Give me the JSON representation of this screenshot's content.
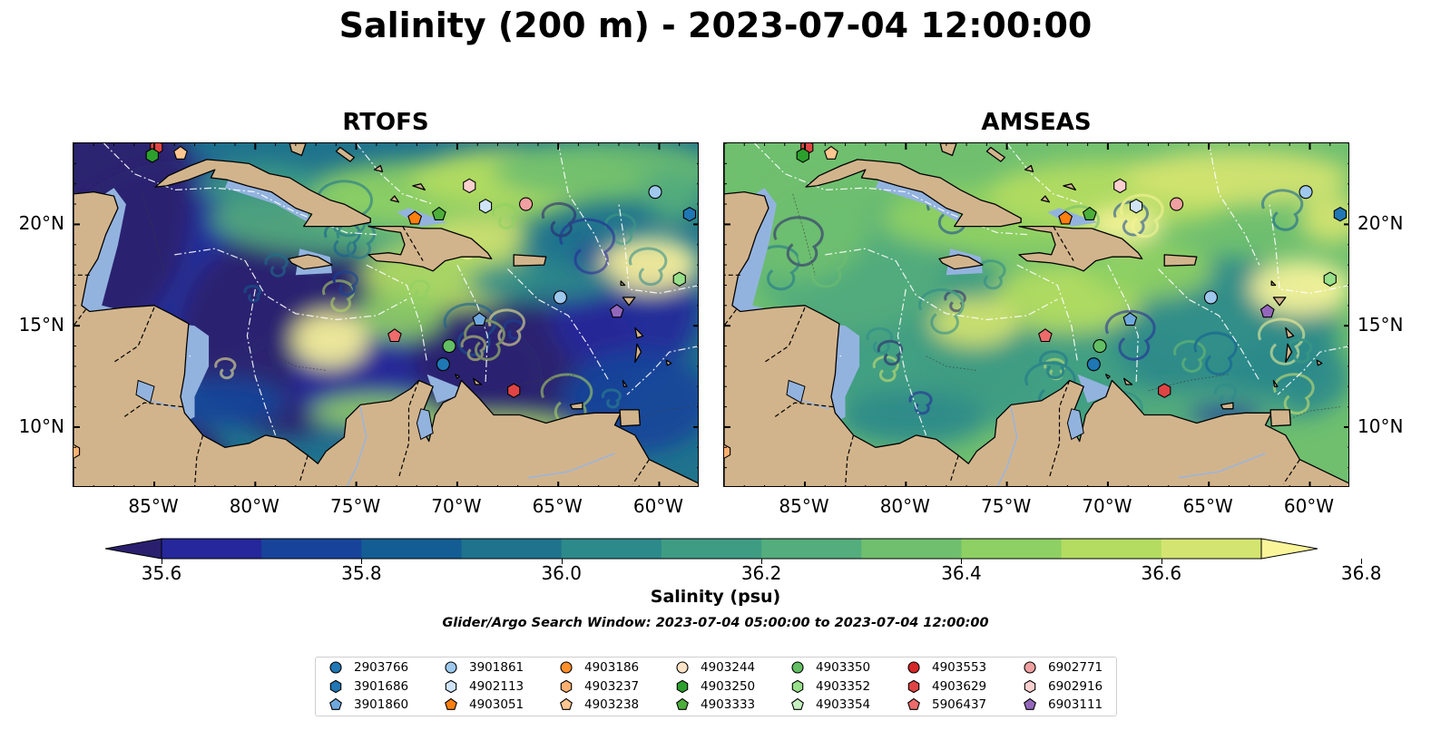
{
  "title": "Salinity (200 m) - 2023-07-04 12:00:00",
  "panels": [
    {
      "title": "RTOFS",
      "scheme": "rtofs"
    },
    {
      "title": "AMSEAS",
      "scheme": "amseas"
    }
  ],
  "map_extent": {
    "lon_min": -89,
    "lon_max": -58,
    "lat_min": 7,
    "lat_max": 24
  },
  "axes": {
    "lon_ticks": [
      "85°W",
      "80°W",
      "75°W",
      "70°W",
      "65°W",
      "60°W"
    ],
    "lat_ticks": [
      "20°N",
      "15°N",
      "10°N"
    ]
  },
  "colorbar": {
    "label": "Salinity (psu)",
    "min": 35.6,
    "max": 36.9,
    "step": 0.1,
    "tick_labels": [
      "35.6",
      "35.8",
      "36.0",
      "36.2",
      "36.4",
      "36.6",
      "36.8"
    ],
    "colors": [
      "#2a1f6e",
      "#25279a",
      "#17449a",
      "#135d94",
      "#1f738d",
      "#2d8a8a",
      "#3e9c83",
      "#53ad7c",
      "#6fbf6f",
      "#8ed063",
      "#b3dc61",
      "#d4e470",
      "#fbf59a"
    ],
    "extend": "both"
  },
  "search_window": "Glider/Argo Search Window: 2023-07-04 05:00:00 to 2023-07-04 12:00:00",
  "legend": [
    {
      "id": "2903766",
      "marker": "circle",
      "color": "#1f77b4"
    },
    {
      "id": "3901686",
      "marker": "hexagon",
      "color": "#1f77b4"
    },
    {
      "id": "3901860",
      "marker": "pentagon",
      "color": "#6fa8dc"
    },
    {
      "id": "3901861",
      "marker": "circle",
      "color": "#9ec8ec"
    },
    {
      "id": "4902113",
      "marker": "hexagon",
      "color": "#cfe4f7"
    },
    {
      "id": "4903051",
      "marker": "pentagon",
      "color": "#ff7f0e"
    },
    {
      "id": "4903186",
      "marker": "circle",
      "color": "#ff8f2a"
    },
    {
      "id": "4903237",
      "marker": "hexagon",
      "color": "#ffb070"
    },
    {
      "id": "4903238",
      "marker": "pentagon",
      "color": "#ffc690"
    },
    {
      "id": "4903244",
      "marker": "circle",
      "color": "#ffe4c8"
    },
    {
      "id": "4903250",
      "marker": "hexagon",
      "color": "#2ca02c"
    },
    {
      "id": "4903333",
      "marker": "pentagon",
      "color": "#4caf3a"
    },
    {
      "id": "4903350",
      "marker": "circle",
      "color": "#63bf63"
    },
    {
      "id": "4903352",
      "marker": "hexagon",
      "color": "#98df8a"
    },
    {
      "id": "4903354",
      "marker": "pentagon",
      "color": "#c7f0c0"
    },
    {
      "id": "4903553",
      "marker": "circle",
      "color": "#d62728"
    },
    {
      "id": "4903629",
      "marker": "hexagon",
      "color": "#e04444"
    },
    {
      "id": "5906437",
      "marker": "pentagon",
      "color": "#ee6b6b"
    },
    {
      "id": "6902771",
      "marker": "circle",
      "color": "#f0a0a0"
    },
    {
      "id": "6902916",
      "marker": "hexagon",
      "color": "#fccfcf"
    },
    {
      "id": "6903111",
      "marker": "pentagon",
      "color": "#9467bd"
    }
  ],
  "observations": [
    {
      "id": "4903629",
      "lon": -84.9,
      "lat": 23.8
    },
    {
      "id": "4903250",
      "lon": -85.1,
      "lat": 23.4
    },
    {
      "id": "4903238",
      "lon": -83.7,
      "lat": 23.5
    },
    {
      "id": "6902916",
      "lon": -69.4,
      "lat": 21.9
    },
    {
      "id": "4902113",
      "lon": -68.6,
      "lat": 20.9
    },
    {
      "id": "6902771",
      "lon": -66.6,
      "lat": 21.0
    },
    {
      "id": "3901861",
      "lon": -60.2,
      "lat": 21.6
    },
    {
      "id": "3901686",
      "lon": -58.5,
      "lat": 20.5
    },
    {
      "id": "4903051",
      "lon": -72.1,
      "lat": 20.3
    },
    {
      "id": "4903333",
      "lon": -70.9,
      "lat": 20.5
    },
    {
      "id": "4903352",
      "lon": -59.0,
      "lat": 17.3
    },
    {
      "id": "3901861",
      "lon": -64.9,
      "lat": 16.4
    },
    {
      "id": "3901860",
      "lon": -68.9,
      "lat": 15.3
    },
    {
      "id": "6903111",
      "lon": -62.1,
      "lat": 15.7
    },
    {
      "id": "5906437",
      "lon": -73.1,
      "lat": 14.5
    },
    {
      "id": "4903350",
      "lon": -70.4,
      "lat": 14.0
    },
    {
      "id": "2903766",
      "lon": -70.7,
      "lat": 13.1
    },
    {
      "id": "4903629",
      "lon": -67.2,
      "lat": 11.8
    },
    {
      "id": "4903237",
      "lon": -89.0,
      "lat": 8.8
    }
  ]
}
